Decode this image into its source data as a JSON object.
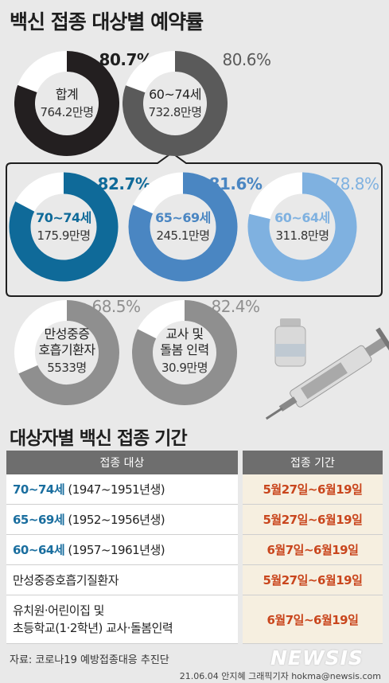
{
  "title": "백신 접종 대상별 예약률",
  "chart_data": {
    "type": "donut",
    "unit": "%",
    "items": [
      {
        "label": "합계",
        "count": "764.2만명",
        "value": 80.7,
        "value_label": "80.7%",
        "color": "#231f20",
        "value_color": "#1e1e1e"
      },
      {
        "label": "60~74세",
        "count": "732.8만명",
        "value": 80.6,
        "value_label": "80.6%",
        "color": "#5a5a5a",
        "value_color": "#5a5a5a"
      },
      {
        "label": "70~74세",
        "count": "175.9만명",
        "value": 82.7,
        "value_label": "82.7%",
        "color": "#0f6a99",
        "value_color": "#0f6a99"
      },
      {
        "label": "65~69세",
        "count": "245.1만명",
        "value": 81.6,
        "value_label": "81.6%",
        "color": "#4a86c2",
        "value_color": "#4a86c2"
      },
      {
        "label": "60~64세",
        "count": "311.8만명",
        "value": 78.8,
        "value_label": "78.8%",
        "color": "#7fb1e0",
        "value_color": "#7fb1e0"
      },
      {
        "label": "만성중증\n호흡기환자",
        "count": "5533명",
        "value": 68.5,
        "value_label": "68.5%",
        "color": "#8f8f8f",
        "value_color": "#8f8f8f"
      },
      {
        "label": "교사 및\n돌봄 인력",
        "count": "30.9만명",
        "value": 82.4,
        "value_label": "82.4%",
        "color": "#8f8f8f",
        "value_color": "#8f8f8f"
      }
    ]
  },
  "schedule": {
    "title": "대상자별 백신 접종 기간",
    "col_target": "접종 대상",
    "col_period": "접종 기간",
    "rows": [
      {
        "age": "70~74세",
        "text": " (1947~1951년생)",
        "period": "5월27일~6월19일"
      },
      {
        "age": "65~69세",
        "text": " (1952~1956년생)",
        "period": "5월27일~6월19일"
      },
      {
        "age": "60~64세",
        "text": " (1957~1961년생)",
        "period": "6월7일~6월19일"
      },
      {
        "age": "",
        "text": "만성중증호흡기질환자",
        "period": "5월27일~6월19일"
      },
      {
        "age": "",
        "text": "유치원·어린이집 및",
        "text2": "초등학교(1·2학년) 교사·돌봄인력",
        "period": "6월7일~6월19일"
      }
    ]
  },
  "footer": {
    "source": "자료: 코로나19 예방접종대응 추진단",
    "credit": "21.06.04 안지혜 그래픽기자 hokma@newsis.com",
    "logo": "NEWSIS"
  }
}
